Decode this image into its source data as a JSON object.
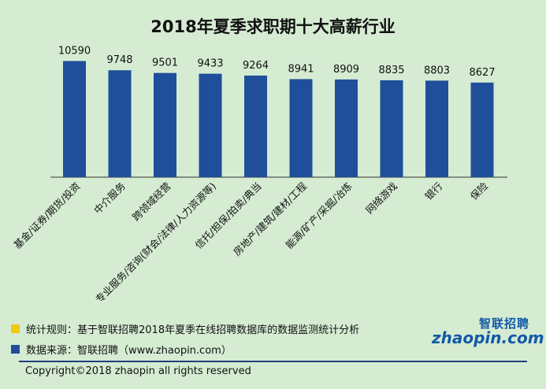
{
  "chart_data": {
    "type": "bar",
    "title": "2018年夏季求职期十大高薪行业",
    "categories": [
      "基金/证券/期货/投资",
      "中介服务",
      "跨领域经营",
      "专业服务/咨询(财会/法律/人力资源等)",
      "信托/担保/拍卖/典当",
      "房地产/建筑/建材/工程",
      "能源/矿产/采掘/冶炼",
      "网络游戏",
      "银行",
      "保险"
    ],
    "values": [
      10590,
      9748,
      9501,
      9433,
      9264,
      8941,
      8909,
      8835,
      8803,
      8627
    ],
    "data_labels": [
      "10590",
      "9748",
      "9501",
      "9433",
      "9264",
      "8941",
      "8909",
      "8835",
      "8803",
      "8627"
    ],
    "ylim": [
      0,
      14000
    ],
    "grid": false,
    "legend": "none",
    "bar_color": "#1f4e9a"
  },
  "notes": [
    {
      "text": "统计规则：基于智联招聘2018年夏季在线招聘数据库的数据监测统计分析",
      "color": "#f2c811"
    },
    {
      "text": "数据来源：智联招聘（www.zhaopin.com）",
      "color": "#1f4e9a"
    }
  ],
  "copyright": "Copyright©2018 zhaopin all rights reserved",
  "logo": {
    "cn": "智联招聘",
    "en": "zhaopin.com",
    "icon": "zhaopin-logo-icon"
  },
  "colors": {
    "background": "#d5ecd2",
    "accent": "#1f4e9a",
    "axis": "#333333"
  }
}
